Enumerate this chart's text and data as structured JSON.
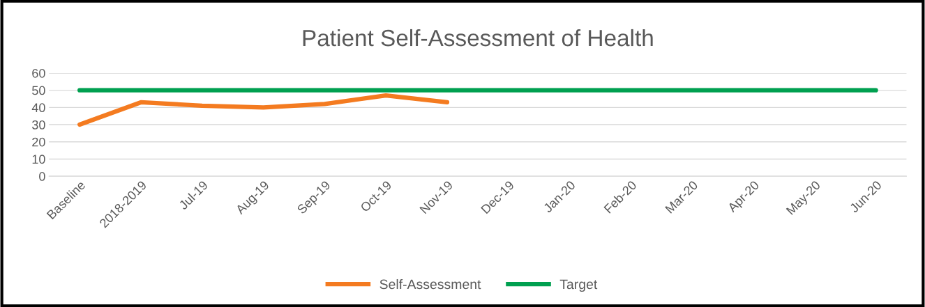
{
  "chart_data": {
    "type": "line",
    "title": "Patient Self-Assessment of Health",
    "categories": [
      "Baseline",
      "2018-2019",
      "Jul-19",
      "Aug-19",
      "Sep-19",
      "Oct-19",
      "Nov-19",
      "Dec-19",
      "Jan-20",
      "Feb-20",
      "Mar-20",
      "Apr-20",
      "May-20",
      "Jun-20"
    ],
    "series": [
      {
        "name": "Self-Assessment",
        "color": "#f47b20",
        "values": [
          30,
          43,
          41,
          40,
          42,
          47,
          43,
          null,
          null,
          null,
          null,
          null,
          null,
          null
        ]
      },
      {
        "name": "Target",
        "color": "#00a050",
        "values": [
          50,
          50,
          50,
          50,
          50,
          50,
          50,
          50,
          50,
          50,
          50,
          50,
          50,
          50
        ]
      }
    ],
    "ylim": [
      0,
      60
    ],
    "yticks": [
      0,
      10,
      20,
      30,
      40,
      50,
      60
    ],
    "grid": "y",
    "legend": "bottom",
    "marker": "none",
    "line_style": "solid"
  }
}
